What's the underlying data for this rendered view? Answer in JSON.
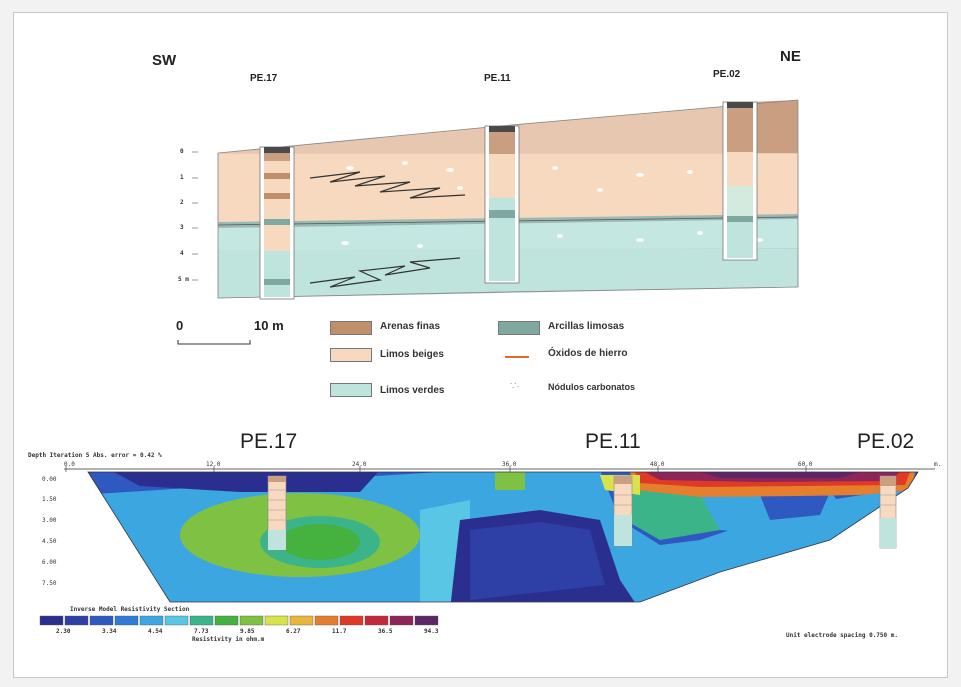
{
  "section": {
    "direction_left": "SW",
    "direction_right": "NE",
    "wells": [
      "PE.17",
      "PE.11",
      "PE.02"
    ],
    "depth_ticks": [
      "0",
      "1",
      "2",
      "3",
      "4",
      "5 m"
    ],
    "scale": {
      "start": "0",
      "end": "10 m"
    },
    "legend": [
      {
        "label": "Arenas finas",
        "color": "#bf8f6c"
      },
      {
        "label": "Arcillas limosas",
        "color": "#7fa8a0"
      },
      {
        "label": "Limos beiges",
        "color": "#f6d9bf"
      },
      {
        "label": "Óxidos de hierro",
        "color": "#e06a2a"
      },
      {
        "label": "Limos verdes",
        "color": "#bfe4de"
      },
      {
        "label": "Nódulos carbonatos",
        "color": "#ffffff"
      }
    ]
  },
  "ert": {
    "wells": [
      "PE.17",
      "PE.11",
      "PE.02"
    ],
    "title_line": "Depth   Iteration 5 Abs. error = 0.42 %",
    "top_ticks": [
      "0.0",
      "12.0",
      "24.0",
      "36.0",
      "48.0",
      "60.0",
      "m."
    ],
    "depth_ticks": [
      "0.00",
      "1.50",
      "3.00",
      "4.50",
      "6.00",
      "7.50"
    ],
    "scale_title": "Inverse Model Resistivity Section",
    "scale_colors": [
      "#2a2f8f",
      "#2e3fa6",
      "#2f58c0",
      "#2f7bd6",
      "#3ca6e0",
      "#59c6e6",
      "#3bb48a",
      "#45b13f",
      "#7fc243",
      "#d8e24a",
      "#e8b53a",
      "#e57e2d",
      "#dd3b25",
      "#c22a3c",
      "#8e2457",
      "#5e2468"
    ],
    "scale_values": [
      "2.30",
      "3.34",
      "4.54",
      "7.73",
      "9.85",
      "6.27",
      "11.7",
      "36.5",
      "94.3"
    ],
    "scale_unit": "Resistivity in ohm.m",
    "footer": "Unit electrode spacing 0.750 m."
  }
}
